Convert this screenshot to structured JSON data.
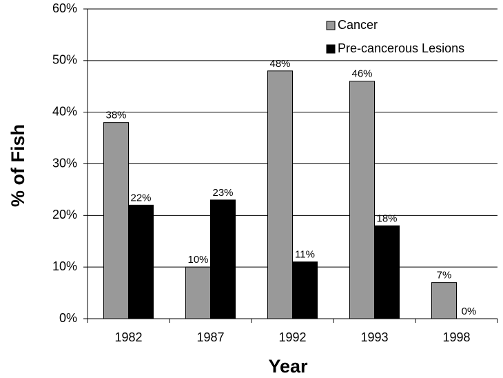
{
  "chart_data": {
    "type": "bar",
    "categories": [
      "1982",
      "1987",
      "1992",
      "1993",
      "1998"
    ],
    "series": [
      {
        "name": "Cancer",
        "color": "#999999",
        "values": [
          38,
          10,
          48,
          46,
          7
        ],
        "value_labels": [
          "38%",
          "10%",
          "48%",
          "46%",
          "7%"
        ]
      },
      {
        "name": "Pre-cancerous Lesions",
        "color": "#000000",
        "values": [
          22,
          23,
          11,
          18,
          0
        ],
        "value_labels": [
          "22%",
          "23%",
          "11%",
          "18%",
          "0%"
        ]
      }
    ],
    "xlabel": "Year",
    "ylabel": "% of Fish",
    "ylim": [
      0,
      60
    ],
    "yticks": [
      {
        "value": 0,
        "label": "0%"
      },
      {
        "value": 10,
        "label": "10%"
      },
      {
        "value": 20,
        "label": "20%"
      },
      {
        "value": 30,
        "label": "30%"
      },
      {
        "value": 40,
        "label": "40%"
      },
      {
        "value": 50,
        "label": "50%"
      },
      {
        "value": 60,
        "label": "60%"
      }
    ],
    "grid": true,
    "legend": "top-right"
  }
}
